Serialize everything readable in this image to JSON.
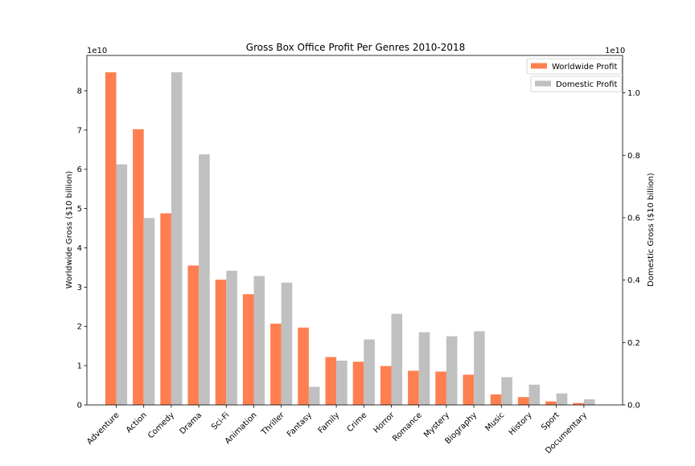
{
  "chart_data": {
    "type": "bar",
    "title": "Gross Box Office Profit Per Genres 2010-2018",
    "categories": [
      "Adventure",
      "Action",
      "Comedy",
      "Drama",
      "Sci-Fi",
      "Animation",
      "Thriller",
      "Fantasy",
      "Family",
      "Crime",
      "Horror",
      "Romance",
      "Mystery",
      "Biography",
      "Music",
      "History",
      "Sport",
      "Documentary"
    ],
    "left_axis": {
      "label": "Worldwide Gross ($10 billion)",
      "offset_text": "1e10",
      "ylim": [
        0,
        8.9
      ],
      "ticks": [
        0,
        1,
        2,
        3,
        4,
        5,
        6,
        7,
        8
      ],
      "tick_labels": [
        "0",
        "1",
        "2",
        "3",
        "4",
        "5",
        "6",
        "7",
        "8"
      ]
    },
    "right_axis": {
      "label": "Domestic Gross ($10 billion)",
      "offset_text": "1e10",
      "ylim": [
        0,
        1.12
      ],
      "ticks": [
        0,
        0.2,
        0.4,
        0.6,
        0.8,
        1.0
      ],
      "tick_labels": [
        "0.0",
        "0.2",
        "0.4",
        "0.6",
        "0.8",
        "1.0"
      ]
    },
    "series": [
      {
        "name": "Worldwide Profit",
        "axis": "left",
        "color": "#ff7f50",
        "values": [
          8.47,
          7.02,
          4.88,
          3.55,
          3.19,
          2.82,
          2.07,
          1.97,
          1.22,
          1.1,
          0.99,
          0.87,
          0.85,
          0.77,
          0.27,
          0.2,
          0.09,
          0.05
        ]
      },
      {
        "name": "Domestic Profit",
        "axis": "right",
        "color": "#c0c0c0",
        "values": [
          0.771,
          0.599,
          1.066,
          0.803,
          0.43,
          0.413,
          0.392,
          0.058,
          0.142,
          0.21,
          0.292,
          0.233,
          0.22,
          0.236,
          0.089,
          0.065,
          0.037,
          0.018
        ]
      }
    ],
    "legend_position": "top-right",
    "grid": false
  }
}
